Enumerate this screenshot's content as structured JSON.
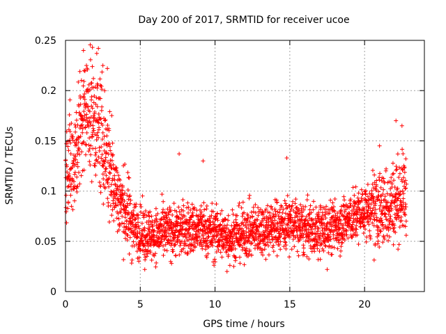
{
  "chart_data": {
    "type": "scatter",
    "title": "Day 200 of 2017, SRMTID for receiver ucoe",
    "xlabel": "GPS time / hours",
    "ylabel": "SRMTID / TECUs",
    "xlim": [
      0,
      24
    ],
    "ylim": [
      0,
      0.25
    ],
    "x_ticks": [
      0,
      5,
      10,
      15,
      20
    ],
    "y_ticks": [
      0,
      0.05,
      0.1,
      0.15,
      0.2,
      0.25
    ],
    "x_tick_labels": [
      "0",
      "5",
      "10",
      "15",
      "20"
    ],
    "y_tick_labels": [
      "0",
      "0.05",
      "0.1",
      "0.15",
      "0.2",
      "0.25"
    ],
    "grid": true,
    "marker": "+",
    "marker_color": "#ff0000",
    "data_extent_x": [
      0,
      22.8
    ],
    "trend": [
      {
        "x": 0.0,
        "y": 0.12
      },
      {
        "x": 0.5,
        "y": 0.13
      },
      {
        "x": 1.0,
        "y": 0.16
      },
      {
        "x": 1.5,
        "y": 0.18
      },
      {
        "x": 2.0,
        "y": 0.17
      },
      {
        "x": 2.5,
        "y": 0.15
      },
      {
        "x": 3.0,
        "y": 0.12
      },
      {
        "x": 3.5,
        "y": 0.095
      },
      {
        "x": 4.0,
        "y": 0.08
      },
      {
        "x": 4.5,
        "y": 0.068
      },
      {
        "x": 5.0,
        "y": 0.058
      },
      {
        "x": 6.0,
        "y": 0.056
      },
      {
        "x": 7.0,
        "y": 0.06
      },
      {
        "x": 8.0,
        "y": 0.062
      },
      {
        "x": 9.0,
        "y": 0.062
      },
      {
        "x": 10.0,
        "y": 0.058
      },
      {
        "x": 11.0,
        "y": 0.055
      },
      {
        "x": 12.0,
        "y": 0.058
      },
      {
        "x": 13.0,
        "y": 0.062
      },
      {
        "x": 14.0,
        "y": 0.065
      },
      {
        "x": 15.0,
        "y": 0.068
      },
      {
        "x": 16.0,
        "y": 0.062
      },
      {
        "x": 17.0,
        "y": 0.06
      },
      {
        "x": 18.0,
        "y": 0.065
      },
      {
        "x": 19.0,
        "y": 0.072
      },
      {
        "x": 20.0,
        "y": 0.08
      },
      {
        "x": 21.0,
        "y": 0.08
      },
      {
        "x": 22.0,
        "y": 0.09
      },
      {
        "x": 22.8,
        "y": 0.1
      }
    ],
    "notable_points": [
      {
        "x": 1.2,
        "y": 0.24
      },
      {
        "x": 1.8,
        "y": 0.243
      },
      {
        "x": 2.2,
        "y": 0.242
      },
      {
        "x": 1.4,
        "y": 0.225
      },
      {
        "x": 2.5,
        "y": 0.225
      },
      {
        "x": 2.8,
        "y": 0.222
      },
      {
        "x": 22.1,
        "y": 0.17
      },
      {
        "x": 22.5,
        "y": 0.165
      },
      {
        "x": 21.0,
        "y": 0.145
      },
      {
        "x": 7.6,
        "y": 0.137
      },
      {
        "x": 14.8,
        "y": 0.133
      },
      {
        "x": 9.2,
        "y": 0.13
      },
      {
        "x": 10.8,
        "y": 0.02
      },
      {
        "x": 17.5,
        "y": 0.022
      },
      {
        "x": 5.3,
        "y": 0.022
      }
    ]
  }
}
